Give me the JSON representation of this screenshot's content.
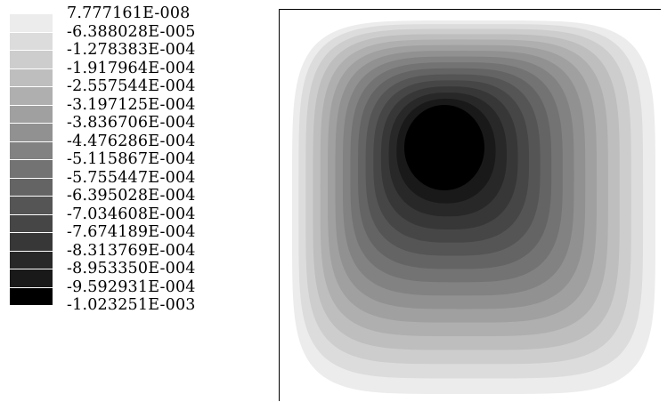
{
  "legend": {
    "labels": [
      "7.777161E-008",
      "-6.388028E-005",
      "-1.278383E-004",
      "-1.917964E-004",
      "-2.557544E-004",
      "-3.197125E-004",
      "-3.836706E-004",
      "-4.476286E-004",
      "-5.115867E-004",
      "-5.755447E-004",
      "-6.395028E-004",
      "-7.034608E-004",
      "-7.674189E-004",
      "-8.313769E-004",
      "-8.953350E-004",
      "-9.592931E-004",
      "-1.023251E-003"
    ],
    "colors": [
      "#ececec",
      "#dcdcdc",
      "#cdcdcd",
      "#bebebe",
      "#afafaf",
      "#a0a0a0",
      "#919191",
      "#828282",
      "#737373",
      "#646464",
      "#555555",
      "#464646",
      "#373737",
      "#282828",
      "#191919",
      "#000000"
    ]
  }
}
